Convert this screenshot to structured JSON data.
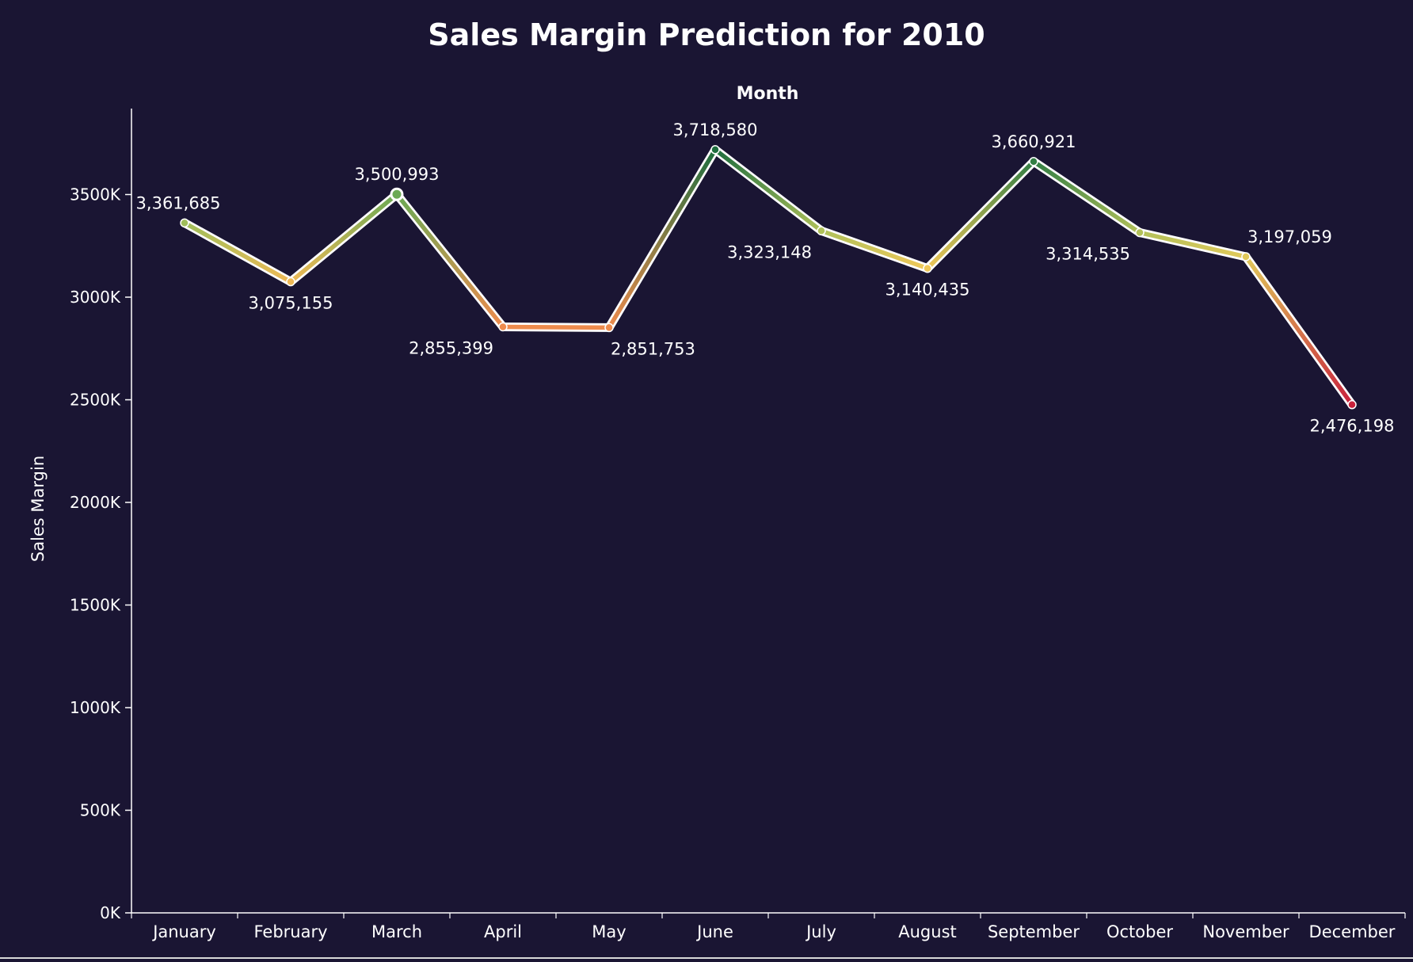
{
  "chart_data": {
    "type": "line",
    "title": "Sales Margin Prediction for 2010",
    "xlabel": "Month",
    "ylabel": "Sales Margin",
    "categories": [
      "January",
      "February",
      "March",
      "April",
      "May",
      "June",
      "July",
      "August",
      "September",
      "October",
      "November",
      "December"
    ],
    "values": [
      3361685,
      3075155,
      3500993,
      2855399,
      2851753,
      3718580,
      3323148,
      3140435,
      3660921,
      3314535,
      3197059,
      2476198
    ],
    "value_labels": [
      "3,361,685",
      "3,075,155",
      "3,500,993",
      "2,855,399",
      "2,851,753",
      "3,718,580",
      "3,323,148",
      "3,140,435",
      "3,660,921",
      "3,314,535",
      "3,197,059",
      "2,476,198"
    ],
    "y_ticks": [
      0,
      500000,
      1000000,
      1500000,
      2000000,
      2500000,
      3000000,
      3500000
    ],
    "y_tick_labels": [
      "0K",
      "500K",
      "1000K",
      "1500K",
      "2000K",
      "2500K",
      "3000K",
      "3500K"
    ],
    "ylim": [
      0,
      3900000
    ],
    "x_label_position": "top",
    "grid": false,
    "legend": "none",
    "color_scale": {
      "low": "#c8223c",
      "mid_low": "#ee8a4d",
      "mid": "#f0cc5a",
      "mid_high": "#7fb85a",
      "high": "#1e6e3e"
    },
    "colors": {
      "background": "#1a1533",
      "text": "#ffffff",
      "axis": "#ffffff",
      "halo": "#ffffff"
    }
  }
}
